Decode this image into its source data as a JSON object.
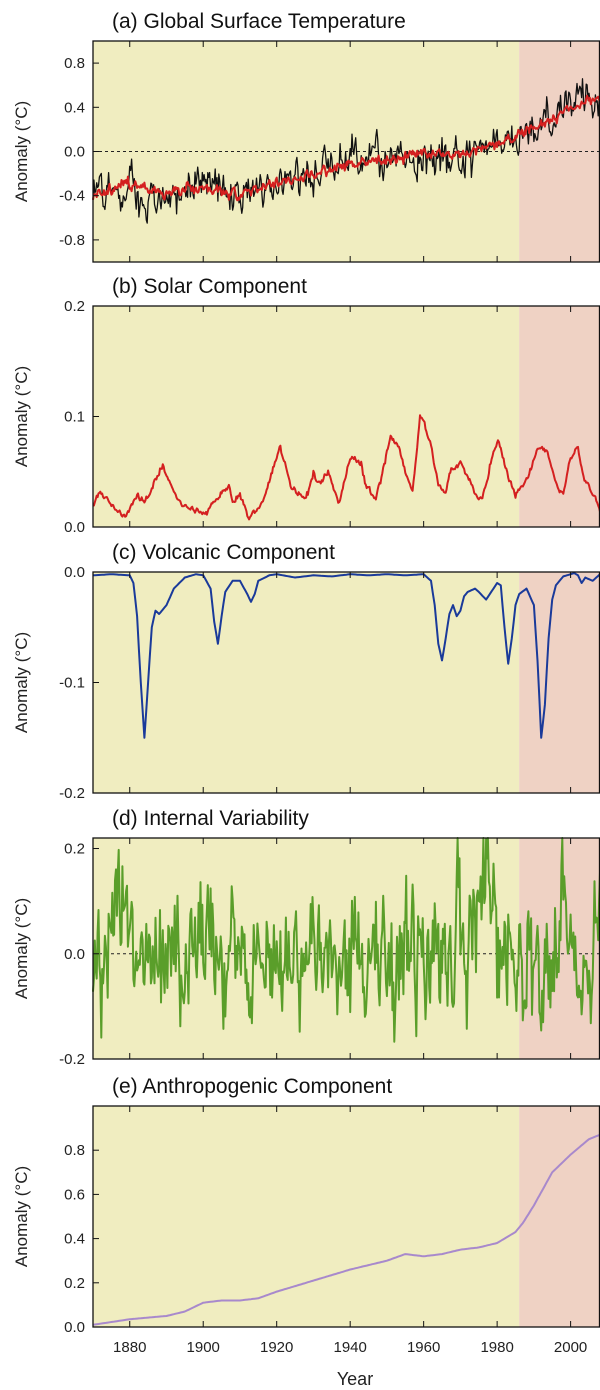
{
  "figure": {
    "x_axis_label": "Year",
    "x_ticks": [
      1880,
      1900,
      1920,
      1940,
      1960,
      1980,
      2000
    ],
    "x_range": [
      1870,
      2008
    ],
    "highlight": {
      "start": 1986,
      "end": 2008,
      "color_before": "#f0edc0",
      "color_after": "#efd2c4"
    }
  },
  "chart_data": [
    {
      "type": "line",
      "title": "(a)  Global Surface Temperature",
      "ylabel": "Anomaly (°C)",
      "ylim": [
        -1.0,
        1.0
      ],
      "y_ticks": [
        0.8,
        0.4,
        0.0,
        -0.4,
        -0.8
      ],
      "y_tick_labels": [
        "0.8",
        "0.4",
        "0.0",
        "-0.4",
        "-0.8"
      ],
      "zero_line": true,
      "series": [
        {
          "role": "observed",
          "color": "#111111",
          "noise": 0.13,
          "x": [
            1870,
            1880,
            1890,
            1900,
            1910,
            1920,
            1930,
            1940,
            1950,
            1960,
            1970,
            1980,
            1990,
            2000,
            2008
          ],
          "y": [
            -0.38,
            -0.35,
            -0.42,
            -0.3,
            -0.42,
            -0.28,
            -0.18,
            -0.02,
            -0.05,
            -0.02,
            -0.04,
            0.05,
            0.22,
            0.45,
            0.5
          ]
        },
        {
          "role": "fitted",
          "color": "#d42020",
          "noise": 0.035,
          "x": [
            1870,
            1880,
            1890,
            1900,
            1910,
            1920,
            1930,
            1940,
            1950,
            1960,
            1970,
            1980,
            1990,
            2000,
            2008
          ],
          "y": [
            -0.4,
            -0.28,
            -0.38,
            -0.32,
            -0.38,
            -0.28,
            -0.2,
            -0.1,
            -0.08,
            -0.02,
            -0.02,
            0.05,
            0.2,
            0.4,
            0.48
          ]
        }
      ]
    },
    {
      "type": "line",
      "title": "(b)  Solar Component",
      "ylabel": "Anomaly (°C)",
      "ylim": [
        0.0,
        0.2
      ],
      "y_ticks": [
        0.2,
        0.1,
        0.0
      ],
      "y_tick_labels": [
        "0.2",
        "0.1",
        "0.0"
      ],
      "zero_line": false,
      "series": [
        {
          "role": "solar",
          "color": "#d42020",
          "noise": 0.002,
          "x": [
            1870,
            1872,
            1876,
            1879,
            1882,
            1884,
            1889,
            1893,
            1895,
            1898,
            1901,
            1905,
            1907,
            1908,
            1910,
            1912,
            1913,
            1916,
            1921,
            1924,
            1928,
            1930,
            1932,
            1934,
            1937,
            1940,
            1943,
            1944,
            1947,
            1951,
            1953,
            1955,
            1957,
            1959,
            1960,
            1962,
            1964,
            1966,
            1967,
            1970,
            1972,
            1974,
            1976,
            1978,
            1980,
            1981,
            1983,
            1985,
            1987,
            1989,
            1991,
            1992,
            1994,
            1996,
            1998,
            2000,
            2002,
            2004,
            2006,
            2008
          ],
          "y": [
            0.02,
            0.033,
            0.015,
            0.012,
            0.03,
            0.022,
            0.055,
            0.025,
            0.018,
            0.015,
            0.012,
            0.03,
            0.04,
            0.022,
            0.03,
            0.012,
            0.01,
            0.02,
            0.073,
            0.035,
            0.025,
            0.048,
            0.038,
            0.05,
            0.02,
            0.063,
            0.058,
            0.04,
            0.025,
            0.08,
            0.075,
            0.05,
            0.03,
            0.1,
            0.095,
            0.075,
            0.038,
            0.03,
            0.05,
            0.058,
            0.045,
            0.03,
            0.025,
            0.055,
            0.078,
            0.072,
            0.045,
            0.03,
            0.035,
            0.05,
            0.072,
            0.072,
            0.065,
            0.038,
            0.03,
            0.065,
            0.07,
            0.04,
            0.03,
            0.015
          ]
        }
      ]
    },
    {
      "type": "line",
      "title": "(c)  Volcanic Component",
      "ylabel": "Anomaly (°C)",
      "ylim": [
        -0.2,
        0.0
      ],
      "y_ticks": [
        0.0,
        -0.1,
        -0.2
      ],
      "y_tick_labels": [
        "0.0",
        "-0.1",
        "-0.2"
      ],
      "zero_line": false,
      "series": [
        {
          "role": "volcanic",
          "color": "#1a3a9a",
          "noise": 0.0,
          "x": [
            1870,
            1875,
            1880,
            1881,
            1882,
            1883,
            1884,
            1885,
            1886,
            1887,
            1888,
            1890,
            1892,
            1895,
            1898,
            1900,
            1902,
            1903,
            1904,
            1905,
            1906,
            1908,
            1910,
            1912,
            1913,
            1914,
            1915,
            1918,
            1920,
            1925,
            1930,
            1935,
            1940,
            1945,
            1950,
            1955,
            1960,
            1962,
            1963,
            1964,
            1965,
            1966,
            1967,
            1968,
            1969,
            1970,
            1971,
            1972,
            1974,
            1975,
            1977,
            1978,
            1980,
            1981,
            1982,
            1983,
            1984,
            1985,
            1986,
            1988,
            1990,
            1991,
            1992,
            1993,
            1994,
            1995,
            1996,
            1998,
            2000,
            2001,
            2002,
            2003,
            2004,
            2006,
            2008
          ],
          "y": [
            -0.003,
            -0.002,
            -0.003,
            -0.01,
            -0.04,
            -0.1,
            -0.15,
            -0.1,
            -0.05,
            -0.035,
            -0.038,
            -0.03,
            -0.015,
            -0.005,
            -0.002,
            -0.003,
            -0.015,
            -0.045,
            -0.065,
            -0.04,
            -0.018,
            -0.008,
            -0.008,
            -0.02,
            -0.027,
            -0.02,
            -0.008,
            -0.003,
            -0.002,
            -0.005,
            -0.003,
            -0.004,
            -0.002,
            -0.003,
            -0.002,
            -0.003,
            -0.002,
            -0.008,
            -0.03,
            -0.065,
            -0.08,
            -0.06,
            -0.038,
            -0.03,
            -0.04,
            -0.035,
            -0.022,
            -0.018,
            -0.015,
            -0.018,
            -0.025,
            -0.02,
            -0.01,
            -0.012,
            -0.05,
            -0.083,
            -0.06,
            -0.03,
            -0.02,
            -0.015,
            -0.03,
            -0.08,
            -0.15,
            -0.12,
            -0.06,
            -0.025,
            -0.012,
            -0.004,
            -0.002,
            -0.001,
            -0.003,
            -0.01,
            -0.005,
            -0.008,
            -0.002
          ]
        }
      ]
    },
    {
      "type": "line",
      "title": "(d)  Internal Variability",
      "ylabel": "Anomaly (°C)",
      "ylim": [
        -0.2,
        0.22
      ],
      "y_ticks": [
        0.2,
        0.0,
        -0.2
      ],
      "y_tick_labels": [
        "0.2",
        "0.0",
        "-0.2"
      ],
      "zero_line": true,
      "series": [
        {
          "role": "internal",
          "color": "#5a9e2a",
          "noise": 0.09,
          "x": [
            1870,
            1875,
            1878,
            1880,
            1885,
            1890,
            1895,
            1900,
            1910,
            1920,
            1930,
            1940,
            1950,
            1960,
            1970,
            1978,
            1980,
            1985,
            1990,
            1995,
            1998,
            2000,
            2008
          ],
          "y": [
            -0.05,
            -0.03,
            0.15,
            0.0,
            -0.02,
            0.02,
            0.0,
            0.03,
            0.0,
            -0.02,
            0.01,
            0.02,
            -0.01,
            0.0,
            0.01,
            0.15,
            -0.03,
            0.0,
            -0.05,
            0.03,
            0.12,
            0.0,
            0.02
          ]
        }
      ]
    },
    {
      "type": "line",
      "title": "(e)  Anthropogenic Component",
      "ylabel": "Anomaly (°C)",
      "ylim": [
        0.0,
        1.0
      ],
      "y_ticks": [
        0.8,
        0.6,
        0.4,
        0.2,
        0.0
      ],
      "y_tick_labels": [
        "0.8",
        "0.6",
        "0.4",
        "0.2",
        "0.0"
      ],
      "zero_line": false,
      "series": [
        {
          "role": "anthropogenic",
          "color": "#a889cc",
          "noise": 0.0,
          "x": [
            1870,
            1880,
            1890,
            1895,
            1900,
            1905,
            1910,
            1915,
            1920,
            1930,
            1940,
            1950,
            1955,
            1960,
            1965,
            1970,
            1975,
            1980,
            1983,
            1985,
            1987,
            1990,
            1995,
            2000,
            2005,
            2008
          ],
          "y": [
            0.01,
            0.035,
            0.05,
            0.07,
            0.11,
            0.12,
            0.12,
            0.13,
            0.16,
            0.21,
            0.26,
            0.3,
            0.33,
            0.32,
            0.33,
            0.35,
            0.36,
            0.38,
            0.41,
            0.43,
            0.47,
            0.55,
            0.7,
            0.78,
            0.85,
            0.87
          ]
        }
      ]
    }
  ]
}
